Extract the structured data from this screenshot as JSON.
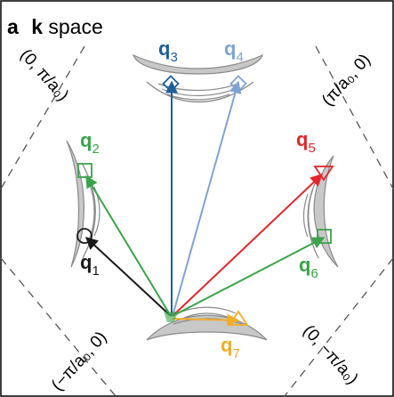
{
  "panel": {
    "letter": "a",
    "title_bold": "k",
    "title_rest": " space"
  },
  "corners": {
    "top_left": "(0, π/a₀)",
    "top_right": "(π/a₀, 0)",
    "bottom_left": "(−π/a₀, 0)",
    "bottom_right": "(0, −π/a₀)"
  },
  "vectors": [
    {
      "id": "q1",
      "sym": "q",
      "sub": "1",
      "color": "#1a1a1a"
    },
    {
      "id": "q2",
      "sym": "q",
      "sub": "2",
      "color": "#3aa449"
    },
    {
      "id": "q3",
      "sym": "q",
      "sub": "3",
      "color": "#1f5f9e"
    },
    {
      "id": "q4",
      "sym": "q",
      "sub": "4",
      "color": "#7ea4d4"
    },
    {
      "id": "q5",
      "sym": "q",
      "sub": "5",
      "color": "#e3262b"
    },
    {
      "id": "q6",
      "sym": "q",
      "sub": "6",
      "color": "#3aa449"
    },
    {
      "id": "q7",
      "sym": "q",
      "sub": "7",
      "color": "#f2ad26"
    }
  ],
  "colors": {
    "arc_fill": "#c8c8c8",
    "arc_stroke": "#8a8a8a",
    "frame": "#000000",
    "boundary": "#555555"
  }
}
